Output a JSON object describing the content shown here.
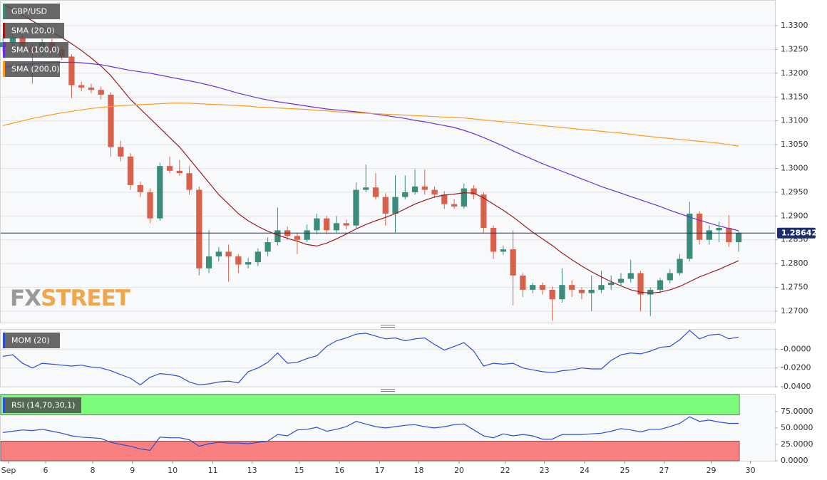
{
  "brand": [
    "FX",
    "STREET"
  ],
  "chart_data": [
    {
      "type": "candlestick",
      "name": "GBP/USD",
      "color": "#3b8c7a",
      "up_color": "#3b8c7a",
      "down_color": "#d9604a",
      "xlim": [
        -0.3,
        78.7
      ],
      "xticks": [
        {
          "value": 0.57,
          "label": "Sep"
        },
        {
          "value": 4.35,
          "label": "6"
        },
        {
          "value": 9.15,
          "label": "8"
        },
        {
          "value": 13.2,
          "label": "9"
        },
        {
          "value": 17.3,
          "label": "10"
        },
        {
          "value": 21.4,
          "label": "11"
        },
        {
          "value": 25.4,
          "label": "13"
        },
        {
          "value": 30.2,
          "label": "15"
        },
        {
          "value": 34.3,
          "label": "16"
        },
        {
          "value": 38.4,
          "label": "17"
        },
        {
          "value": 42.4,
          "label": "18"
        },
        {
          "value": 46.5,
          "label": "20"
        },
        {
          "value": 51.2,
          "label": "22"
        },
        {
          "value": 55.2,
          "label": "23"
        },
        {
          "value": 59.3,
          "label": "24"
        },
        {
          "value": 63.4,
          "label": "25"
        },
        {
          "value": 67.4,
          "label": "27"
        },
        {
          "value": 72.2,
          "label": "29"
        },
        {
          "value": 76.2,
          "label": "30"
        }
      ],
      "ylim": [
        1.2676,
        1.33539
      ],
      "yticks": [
        {
          "value": 1.27,
          "label": "1.2700"
        },
        {
          "value": 1.275,
          "label": "1.2750"
        },
        {
          "value": 1.28,
          "label": "1.2800"
        },
        {
          "value": 1.285,
          "label": "1.2850"
        },
        {
          "value": 1.29,
          "label": "1.2900"
        },
        {
          "value": 1.295,
          "label": "1.2950"
        },
        {
          "value": 1.3,
          "label": "1.3000"
        },
        {
          "value": 1.305,
          "label": "1.3050"
        },
        {
          "value": 1.31,
          "label": "1.3100"
        },
        {
          "value": 1.315,
          "label": "1.3150"
        },
        {
          "value": 1.32,
          "label": "1.3200"
        },
        {
          "value": 1.325,
          "label": "1.3250"
        },
        {
          "value": 1.33,
          "label": "1.3300"
        }
      ],
      "grid": true,
      "last_price": 1.28642,
      "candles": [
        [
          1.3255,
          1.3275,
          1.3245,
          1.3265
        ],
        [
          1.3265,
          1.3285,
          1.3255,
          1.3275
        ],
        [
          1.3275,
          1.3282,
          1.3248,
          1.3255
        ],
        [
          1.3255,
          1.3262,
          1.3178,
          1.3245
        ],
        [
          1.3245,
          1.3272,
          1.3238,
          1.3265
        ],
        [
          1.3265,
          1.3272,
          1.3242,
          1.325
        ],
        [
          1.325,
          1.3258,
          1.3228,
          1.3235
        ],
        [
          1.3235,
          1.324,
          1.3148,
          1.3175
        ],
        [
          1.3175,
          1.3182,
          1.3162,
          1.317
        ],
        [
          1.317,
          1.3178,
          1.3158,
          1.3165
        ],
        [
          1.3165,
          1.3172,
          1.3145,
          1.3155
        ],
        [
          1.3155,
          1.316,
          1.3025,
          1.3045
        ],
        [
          1.3045,
          1.3058,
          1.3015,
          1.3025
        ],
        [
          1.3025,
          1.3032,
          1.2955,
          1.2965
        ],
        [
          1.2965,
          1.2972,
          1.294,
          1.295
        ],
        [
          1.295,
          1.2958,
          1.2885,
          1.2895
        ],
        [
          1.2895,
          1.3012,
          1.289,
          1.3005
        ],
        [
          1.3005,
          1.3025,
          1.299,
          1.2995
        ],
        [
          1.2995,
          1.3018,
          1.2985,
          1.299
        ],
        [
          1.299,
          1.3005,
          1.2945,
          1.2955
        ],
        [
          1.2955,
          1.2962,
          1.2775,
          1.279
        ],
        [
          1.279,
          1.287,
          1.278,
          1.2815
        ],
        [
          1.2815,
          1.2835,
          1.2805,
          1.2825
        ],
        [
          1.2825,
          1.284,
          1.2762,
          1.2815
        ],
        [
          1.2815,
          1.282,
          1.278,
          1.2798
        ],
        [
          1.2798,
          1.2812,
          1.279,
          1.2803
        ],
        [
          1.2803,
          1.2832,
          1.2795,
          1.2825
        ],
        [
          1.2825,
          1.2855,
          1.2815,
          1.2845
        ],
        [
          1.2845,
          1.2918,
          1.2838,
          1.287
        ],
        [
          1.287,
          1.2878,
          1.285,
          1.2858
        ],
        [
          1.2858,
          1.2865,
          1.282,
          1.285
        ],
        [
          1.285,
          1.2882,
          1.2845,
          1.287
        ],
        [
          1.287,
          1.2905,
          1.2862,
          1.2895
        ],
        [
          1.2895,
          1.29,
          1.2862,
          1.287
        ],
        [
          1.287,
          1.29,
          1.2865,
          1.2885
        ],
        [
          1.2885,
          1.2892,
          1.2872,
          1.288
        ],
        [
          1.288,
          1.297,
          1.2875,
          1.2955
        ],
        [
          1.2955,
          1.3008,
          1.295,
          1.296
        ],
        [
          1.296,
          1.299,
          1.2935,
          1.294
        ],
        [
          1.294,
          1.2948,
          1.288,
          1.2905
        ],
        [
          1.2905,
          1.2985,
          1.2865,
          1.294
        ],
        [
          1.294,
          1.2985,
          1.2935,
          1.295
        ],
        [
          1.295,
          1.2998,
          1.2945,
          1.2962
        ],
        [
          1.2962,
          1.2998,
          1.2945,
          1.2955
        ],
        [
          1.2955,
          1.2962,
          1.2938,
          1.2945
        ],
        [
          1.2945,
          1.2952,
          1.2915,
          1.2925
        ],
        [
          1.2925,
          1.2935,
          1.2915,
          1.292
        ],
        [
          1.292,
          1.2968,
          1.2915,
          1.2958
        ],
        [
          1.2958,
          1.2965,
          1.2935,
          1.2945
        ],
        [
          1.2945,
          1.295,
          1.2865,
          1.2875
        ],
        [
          1.2875,
          1.288,
          1.281,
          1.2825
        ],
        [
          1.2825,
          1.2838,
          1.2818,
          1.283
        ],
        [
          1.283,
          1.287,
          1.2712,
          1.2775
        ],
        [
          1.2775,
          1.278,
          1.273,
          1.2745
        ],
        [
          1.2745,
          1.276,
          1.2738,
          1.2755
        ],
        [
          1.2755,
          1.276,
          1.2735,
          1.2745
        ],
        [
          1.2745,
          1.2752,
          1.268,
          1.2725
        ],
        [
          1.2725,
          1.279,
          1.2718,
          1.2755
        ],
        [
          1.2755,
          1.2765,
          1.273,
          1.2745
        ],
        [
          1.2745,
          1.275,
          1.2725,
          1.2738
        ],
        [
          1.2738,
          1.2775,
          1.27,
          1.2745
        ],
        [
          1.2745,
          1.2785,
          1.2738,
          1.2755
        ],
        [
          1.2755,
          1.2775,
          1.2745,
          1.276
        ],
        [
          1.276,
          1.278,
          1.2752,
          1.2768
        ],
        [
          1.2768,
          1.2808,
          1.276,
          1.278
        ],
        [
          1.278,
          1.2785,
          1.27,
          1.2735
        ],
        [
          1.2735,
          1.275,
          1.269,
          1.2745
        ],
        [
          1.2745,
          1.277,
          1.2738,
          1.2765
        ],
        [
          1.2765,
          1.2788,
          1.2758,
          1.278
        ],
        [
          1.278,
          1.282,
          1.2775,
          1.281
        ],
        [
          1.281,
          1.293,
          1.2805,
          1.2905
        ],
        [
          1.2905,
          1.291,
          1.284,
          1.285
        ],
        [
          1.285,
          1.288,
          1.284,
          1.287
        ],
        [
          1.287,
          1.2888,
          1.2845,
          1.2875
        ],
        [
          1.2875,
          1.2902,
          1.2835,
          1.2845
        ],
        [
          1.2845,
          1.2868,
          1.2825,
          1.28642
        ]
      ],
      "series": [
        {
          "name": "SMA (20,0)",
          "color": "#9b1c1c",
          "values": [
            1.3345,
            1.3335,
            1.3322,
            1.331,
            1.3298,
            1.3286,
            1.3275,
            1.3262,
            1.3248,
            1.3232,
            1.3215,
            1.3195,
            1.317,
            1.3145,
            1.3125,
            1.3105,
            1.3085,
            1.3065,
            1.3045,
            1.302,
            1.2995,
            1.297,
            1.2945,
            1.2925,
            1.2905,
            1.289,
            1.2878,
            1.2868,
            1.286,
            1.2853,
            1.2847,
            1.284,
            1.2837,
            1.2843,
            1.2852,
            1.2862,
            1.2873,
            1.2882,
            1.289,
            1.2897,
            1.2905,
            1.2915,
            1.2925,
            1.2933,
            1.294,
            1.2944,
            1.2946,
            1.2949,
            1.2948,
            1.2938,
            1.2925,
            1.2912,
            1.2898,
            1.2882,
            1.2866,
            1.2852,
            1.2838,
            1.2822,
            1.2808,
            1.2795,
            1.2783,
            1.2772,
            1.2762,
            1.2753,
            1.2745,
            1.274,
            1.2738,
            1.274,
            1.2745,
            1.2752,
            1.2762,
            1.2772,
            1.278,
            1.2788,
            1.2797,
            1.2806
          ]
        },
        {
          "name": "SMA (100,0)",
          "color": "#6a2fd8",
          "values": [
            1.3212,
            1.3215,
            1.3218,
            1.322,
            1.3222,
            1.3223,
            1.3223,
            1.3223,
            1.3222,
            1.322,
            1.3218,
            1.3214,
            1.321,
            1.3206,
            1.3203,
            1.32,
            1.3196,
            1.3192,
            1.3188,
            1.3184,
            1.318,
            1.3175,
            1.317,
            1.3164,
            1.3158,
            1.3153,
            1.3148,
            1.3144,
            1.314,
            1.3137,
            1.3134,
            1.3131,
            1.3128,
            1.3125,
            1.3123,
            1.3121,
            1.3119,
            1.3117,
            1.3114,
            1.3111,
            1.3108,
            1.3105,
            1.3101,
            1.3098,
            1.3094,
            1.309,
            1.3086,
            1.308,
            1.3073,
            1.3065,
            1.3056,
            1.3047,
            1.3037,
            1.3028,
            1.3019,
            1.301,
            1.3002,
            1.2994,
            1.2986,
            1.2978,
            1.297,
            1.2962,
            1.2955,
            1.2948,
            1.2941,
            1.2934,
            1.2927,
            1.292,
            1.2912,
            1.2905,
            1.2898,
            1.2891,
            1.2885,
            1.2879,
            1.2874,
            1.2869
          ]
        },
        {
          "name": "SMA (200,0)",
          "color": "#ff9a1a",
          "values": [
            1.309,
            1.3095,
            1.31,
            1.3105,
            1.3109,
            1.3113,
            1.3117,
            1.312,
            1.3123,
            1.3126,
            1.3128,
            1.313,
            1.3132,
            1.3133,
            1.3134,
            1.3135,
            1.3136,
            1.3137,
            1.3137,
            1.3137,
            1.3136,
            1.3135,
            1.3134,
            1.3133,
            1.3132,
            1.3131,
            1.3129,
            1.3128,
            1.3127,
            1.3126,
            1.3125,
            1.3124,
            1.3122,
            1.3121,
            1.3119,
            1.3118,
            1.3117,
            1.3116,
            1.3115,
            1.3114,
            1.3113,
            1.3112,
            1.3111,
            1.311,
            1.3109,
            1.3108,
            1.3107,
            1.3106,
            1.3104,
            1.3102,
            1.31,
            1.3098,
            1.3096,
            1.3094,
            1.3092,
            1.309,
            1.3088,
            1.3086,
            1.3084,
            1.3082,
            1.308,
            1.3078,
            1.3076,
            1.3074,
            1.3072,
            1.3069,
            1.3067,
            1.3065,
            1.3063,
            1.3061,
            1.3059,
            1.3057,
            1.3055,
            1.3053,
            1.305,
            1.3047
          ]
        }
      ]
    },
    {
      "type": "line",
      "ylim": [
        -0.04,
        0.0215
      ],
      "yticks": [
        {
          "value": 0,
          "label": "-0.0000"
        },
        {
          "value": -0.02,
          "label": "-0.0200"
        },
        {
          "value": -0.04,
          "label": "-0.0400"
        }
      ],
      "grid": true,
      "series": [
        {
          "name": "MOM (20)",
          "color": "#2a4fd6",
          "values": [
            -0.0077,
            -0.006,
            -0.015,
            -0.02,
            -0.015,
            -0.016,
            -0.017,
            -0.018,
            -0.017,
            -0.019,
            -0.02,
            -0.023,
            -0.027,
            -0.031,
            -0.038,
            -0.03,
            -0.026,
            -0.027,
            -0.029,
            -0.035,
            -0.038,
            -0.037,
            -0.035,
            -0.034,
            -0.036,
            -0.024,
            -0.02,
            -0.014,
            -0.004,
            -0.015,
            -0.014,
            -0.01,
            -0.007,
            0.003,
            0.009,
            0.012,
            0.016,
            0.017,
            0.014,
            0.011,
            0.012,
            0.009,
            0.011,
            0.012,
            0.005,
            -0.001,
            0.003,
            0.007,
            -0.002,
            -0.018,
            -0.015,
            -0.016,
            -0.015,
            -0.02,
            -0.022,
            -0.024,
            -0.025,
            -0.023,
            -0.022,
            -0.02,
            -0.021,
            -0.021,
            -0.012,
            -0.006,
            -0.004,
            -0.005,
            -0.002,
            0.002,
            0.003,
            0.01,
            0.02,
            0.011,
            0.015,
            0.016,
            0.011,
            0.013
          ]
        }
      ]
    },
    {
      "type": "line",
      "ylim": [
        0,
        102
      ],
      "yticks": [
        {
          "value": 0,
          "label": "0.0000"
        },
        {
          "value": 25,
          "label": "25.0000"
        },
        {
          "value": 50,
          "label": "50.0000"
        },
        {
          "value": 75,
          "label": "75.0000"
        }
      ],
      "grid": false,
      "overbought": 70,
      "oversold": 30,
      "overbought_color": "#7dfc7d",
      "oversold_color": "#f98080",
      "series": [
        {
          "name": "RSI (14,70,30,1)",
          "color": "#2a4fd6",
          "values": [
            43,
            45,
            47,
            46,
            48,
            45,
            42,
            38,
            36,
            35,
            34,
            28,
            25,
            22,
            18,
            16,
            36,
            35,
            35,
            32,
            22,
            26,
            28,
            27,
            27,
            26,
            28,
            30,
            40,
            38,
            47,
            48,
            51,
            45,
            48,
            52,
            60,
            56,
            52,
            50,
            52,
            54,
            55,
            52,
            50,
            52,
            55,
            56,
            47,
            38,
            35,
            41,
            38,
            40,
            38,
            33,
            33,
            40,
            40,
            40,
            41,
            42,
            45,
            49,
            47,
            44,
            48,
            48,
            52,
            57,
            67,
            60,
            62,
            59,
            57,
            57
          ]
        }
      ]
    }
  ]
}
